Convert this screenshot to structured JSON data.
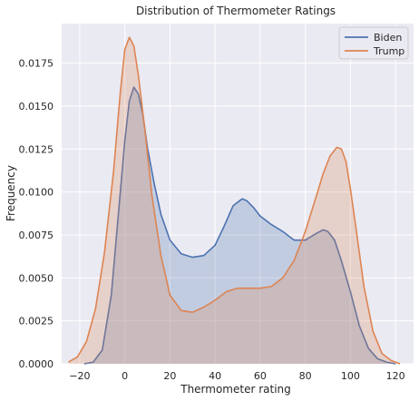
{
  "chart_data": {
    "type": "area",
    "title": "Distribution of Thermometer Ratings",
    "xlabel": "Thermometer rating",
    "ylabel": "Frequency",
    "xlim": [
      -28,
      128
    ],
    "ylim": [
      0,
      0.0198
    ],
    "x_ticks": [
      -20,
      0,
      20,
      40,
      60,
      80,
      100,
      120
    ],
    "y_ticks": [
      0.0,
      0.0025,
      0.005,
      0.0075,
      0.01,
      0.0125,
      0.015,
      0.0175
    ],
    "y_tick_labels": [
      "0.0000",
      "0.0025",
      "0.0050",
      "0.0075",
      "0.0100",
      "0.0125",
      "0.0150",
      "0.0175"
    ],
    "grid": true,
    "legend_position": "top-right",
    "background_color": "#eaeaf2",
    "series": [
      {
        "name": "Biden",
        "color": "#4c72b0",
        "x": [
          -18,
          -14,
          -10,
          -6,
          -3,
          0,
          2,
          4,
          6,
          8,
          10,
          13,
          16,
          20,
          25,
          30,
          35,
          40,
          44,
          48,
          52,
          54,
          57,
          60,
          65,
          70,
          75,
          80,
          85,
          88,
          90,
          93,
          96,
          100,
          104,
          108,
          112,
          116,
          120
        ],
        "y": [
          0.0,
          0.0001,
          0.0008,
          0.004,
          0.0085,
          0.013,
          0.0153,
          0.0161,
          0.0157,
          0.0145,
          0.0126,
          0.0105,
          0.0087,
          0.0072,
          0.0064,
          0.0062,
          0.0063,
          0.0069,
          0.008,
          0.0092,
          0.0096,
          0.0095,
          0.0091,
          0.0086,
          0.0081,
          0.0077,
          0.0072,
          0.0072,
          0.0076,
          0.0078,
          0.0077,
          0.0072,
          0.006,
          0.0042,
          0.0022,
          0.0009,
          0.0003,
          0.0001,
          0.0
        ]
      },
      {
        "name": "Trump",
        "color": "#dd8452",
        "x": [
          -25,
          -21,
          -17,
          -13,
          -9,
          -5,
          -2,
          0,
          2,
          4,
          6,
          9,
          12,
          16,
          20,
          25,
          30,
          35,
          40,
          45,
          50,
          55,
          60,
          65,
          70,
          75,
          80,
          85,
          88,
          91,
          94,
          96,
          98,
          100,
          103,
          106,
          110,
          114,
          118,
          122
        ],
        "y": [
          0.0001,
          0.0004,
          0.0013,
          0.0032,
          0.0065,
          0.0112,
          0.0158,
          0.0183,
          0.019,
          0.0185,
          0.0168,
          0.0135,
          0.0098,
          0.0063,
          0.004,
          0.0031,
          0.003,
          0.0033,
          0.0037,
          0.0042,
          0.0044,
          0.0044,
          0.0044,
          0.0045,
          0.005,
          0.006,
          0.0077,
          0.0098,
          0.0111,
          0.0121,
          0.0126,
          0.0125,
          0.0118,
          0.0102,
          0.0074,
          0.0045,
          0.0019,
          0.0006,
          0.0002,
          0.0
        ]
      }
    ]
  }
}
